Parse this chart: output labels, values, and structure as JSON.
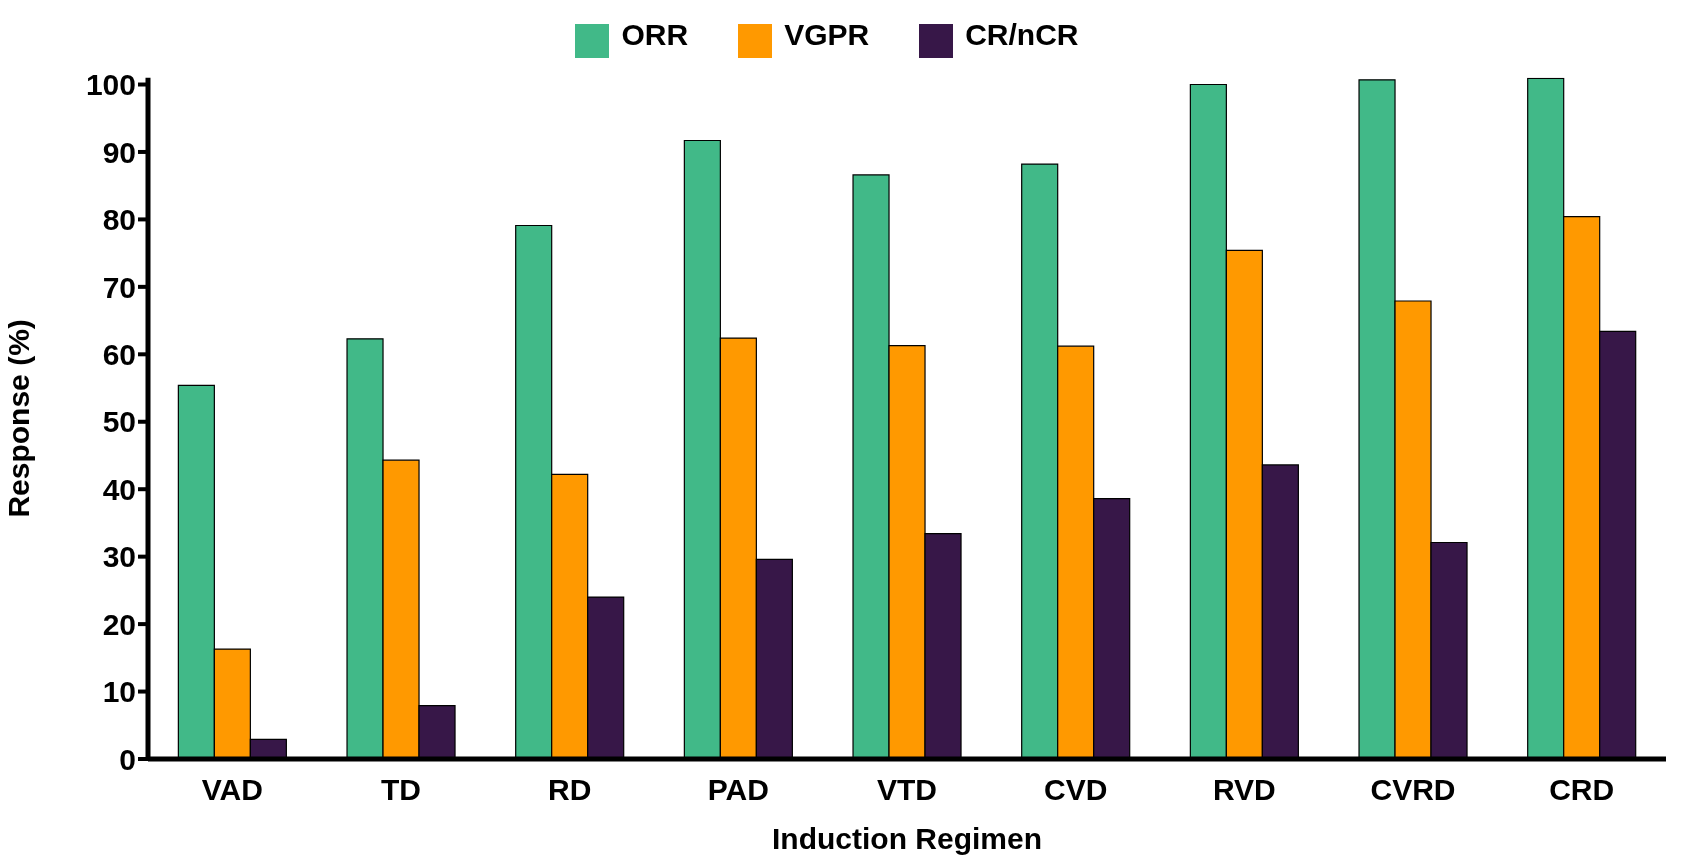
{
  "chart_data": {
    "type": "bar",
    "xlabel": "Induction Regimen",
    "ylabel": "Response (%)",
    "categories": [
      "VAD",
      "TD",
      "RD",
      "PAD",
      "VTD",
      "CVD",
      "RVD",
      "CVRD",
      "CRD"
    ],
    "series": [
      {
        "name": "ORR",
        "color": "#41b988",
        "values": [
          55.4,
          62.3,
          79.1,
          91.7,
          86.6,
          88.2,
          100,
          100.7,
          100.9
        ]
      },
      {
        "name": "VGPR",
        "color": "#ff9900",
        "values": [
          16.3,
          44.3,
          42.2,
          62.4,
          61.3,
          61.2,
          75.4,
          67.9,
          80.4
        ]
      },
      {
        "name": "CR/nCR",
        "color": "#371748",
        "values": [
          2.9,
          7.9,
          24.0,
          29.6,
          33.4,
          38.6,
          43.6,
          32.1,
          63.4
        ]
      }
    ],
    "ylim": [
      0,
      101
    ],
    "yticks": [
      0,
      10,
      20,
      30,
      40,
      50,
      60,
      70,
      80,
      90,
      100
    ],
    "grid": false,
    "legend": "top"
  }
}
